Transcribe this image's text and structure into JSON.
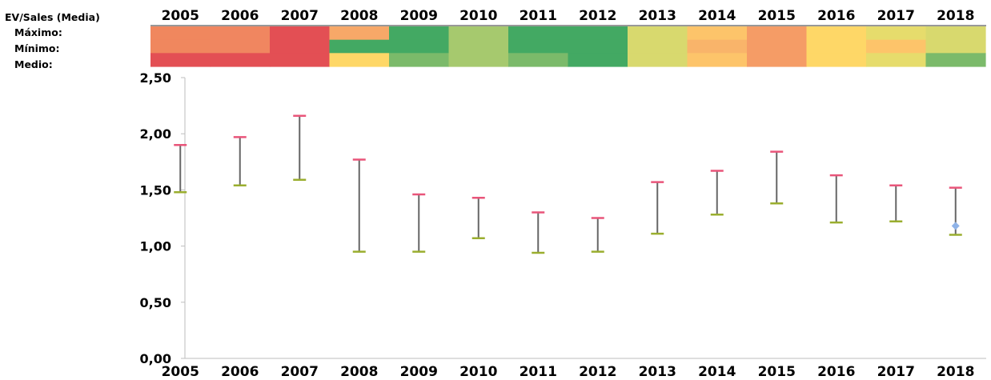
{
  "header": {
    "title": "EV/Sales (Media)",
    "row_labels": [
      "Máximo:",
      "Mínimo:",
      "Medio:"
    ]
  },
  "heatmap_colors": [
    [
      "#f0875e",
      "#f0875e",
      "#e34f54"
    ],
    [
      "#f08660",
      "#f08660",
      "#e34f54"
    ],
    [
      "#e34f54",
      "#e34f54",
      "#e34f54"
    ],
    [
      "#f7a868",
      "#43a963",
      "#fed767"
    ],
    [
      "#43a963",
      "#43a963",
      "#7bba6a"
    ],
    [
      "#a6c96e",
      "#a6c96e",
      "#a6c96e"
    ],
    [
      "#43a963",
      "#43a963",
      "#7bba6a"
    ],
    [
      "#43a963",
      "#43a963",
      "#43a963"
    ],
    [
      "#d8d96e",
      "#d8d96e",
      "#d8d96e"
    ],
    [
      "#fdc46a",
      "#f9b46a",
      "#fdc46a"
    ],
    [
      "#f59c66",
      "#f59c66",
      "#f59c66"
    ],
    [
      "#fed767",
      "#fed767",
      "#fed767"
    ],
    [
      "#e6dc6c",
      "#fdc46a",
      "#e6dc6c"
    ],
    [
      "#d8d96e",
      "#d8d96e",
      "#7bba6a"
    ]
  ],
  "chart_data": {
    "type": "error-bar",
    "categories": [
      "2005",
      "2006",
      "2007",
      "2008",
      "2009",
      "2010",
      "2011",
      "2012",
      "2013",
      "2014",
      "2015",
      "2016",
      "2017",
      "2018"
    ],
    "max": [
      1.9,
      1.97,
      2.16,
      1.77,
      1.46,
      1.43,
      1.3,
      1.25,
      1.57,
      1.67,
      1.84,
      1.63,
      1.54,
      1.52
    ],
    "min": [
      1.48,
      1.54,
      1.59,
      0.95,
      0.95,
      1.07,
      0.94,
      0.95,
      1.11,
      1.28,
      1.38,
      1.21,
      1.22,
      1.1
    ],
    "current": [
      {
        "category": "2018",
        "value": 1.18
      }
    ],
    "ylim": [
      0,
      2.5
    ],
    "yticks": [
      "0,00",
      "0,50",
      "1,00",
      "1,50",
      "2,00",
      "2,50"
    ],
    "title": "",
    "xlabel": "",
    "ylabel": "",
    "colors": {
      "max_cap": "#e9557a",
      "min_cap": "#9aae2e",
      "whisker": "#666666",
      "current_marker": "#8fb3e8",
      "axis": "#bdbdbd"
    }
  }
}
